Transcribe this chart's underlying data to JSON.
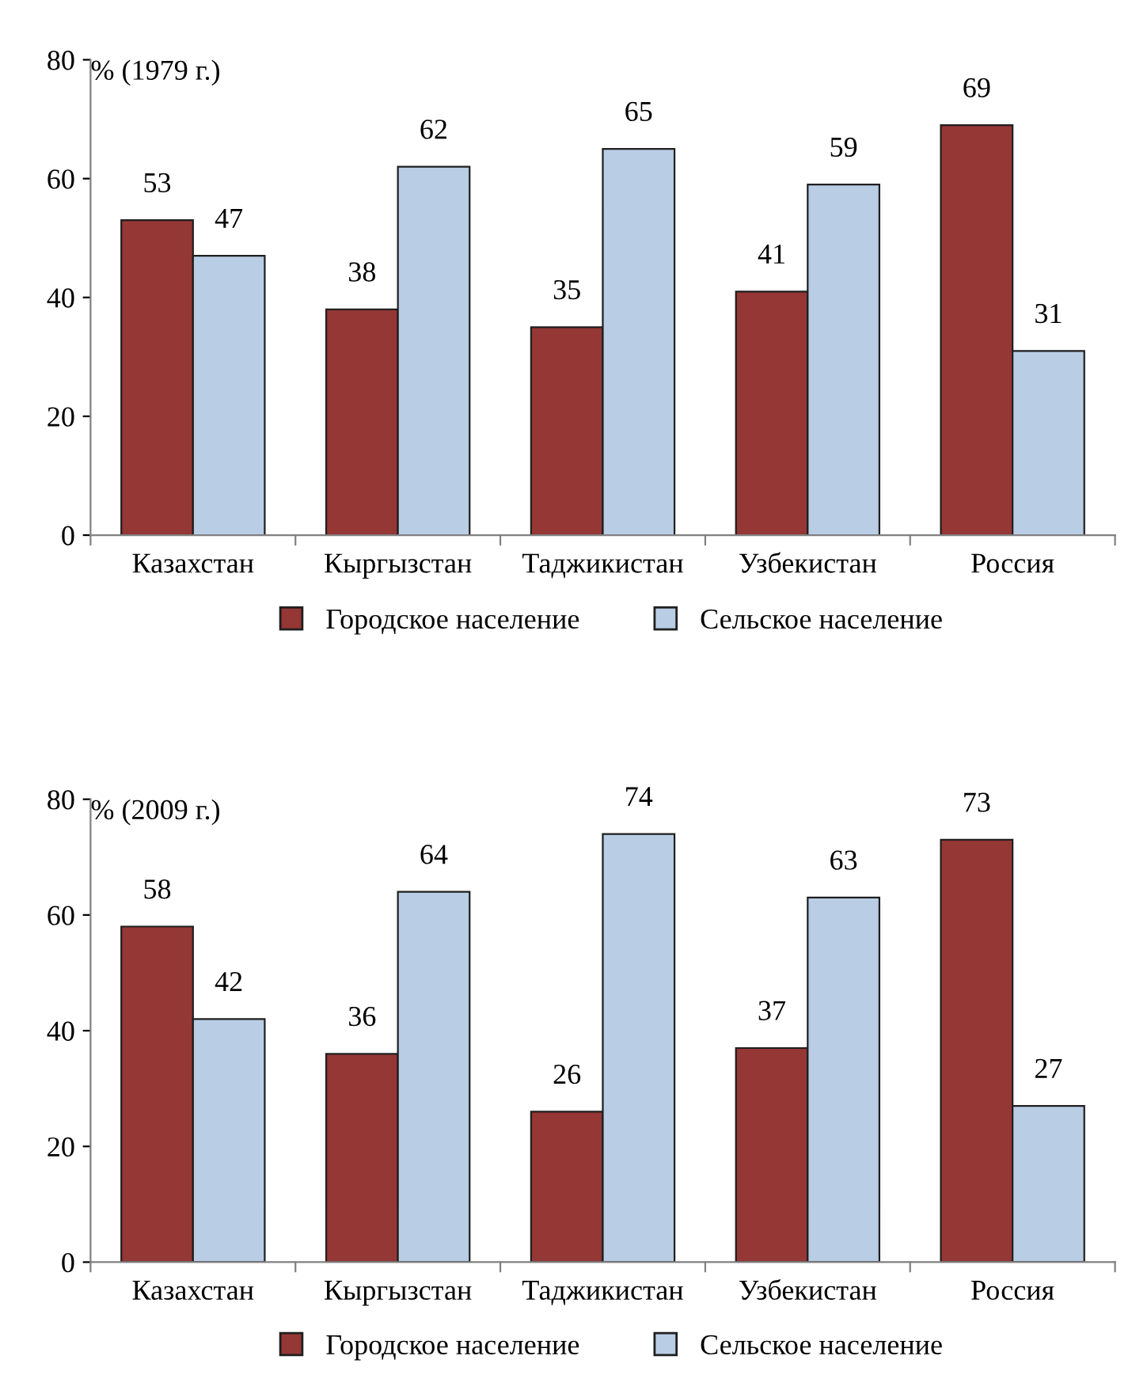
{
  "chart_data": [
    {
      "type": "bar",
      "title": "% (1979 г.)",
      "categories": [
        "Казахстан",
        "Кыргызстан",
        "Таджикистан",
        "Узбекистан",
        "Россия"
      ],
      "series": [
        {
          "name": "Городское население",
          "color": "#953735",
          "values": [
            53,
            38,
            35,
            41,
            69
          ]
        },
        {
          "name": "Сельское население",
          "color": "#b9cde5",
          "values": [
            47,
            62,
            65,
            59,
            31
          ]
        }
      ],
      "ylim": [
        0,
        80
      ],
      "yticks": [
        0,
        20,
        40,
        60,
        80
      ],
      "grid": false,
      "legend": "bottom",
      "data_labels": true
    },
    {
      "type": "bar",
      "title": "% (2009 г.)",
      "categories": [
        "Казахстан",
        "Кыргызстан",
        "Таджикистан",
        "Узбекистан",
        "Россия"
      ],
      "series": [
        {
          "name": "Городское население",
          "color": "#953735",
          "values": [
            58,
            36,
            26,
            37,
            73
          ]
        },
        {
          "name": "Сельское население",
          "color": "#b9cde5",
          "values": [
            42,
            64,
            74,
            63,
            27
          ]
        }
      ],
      "ylim": [
        0,
        80
      ],
      "yticks": [
        0,
        20,
        40,
        60,
        80
      ],
      "grid": false,
      "legend": "bottom",
      "data_labels": true
    }
  ]
}
